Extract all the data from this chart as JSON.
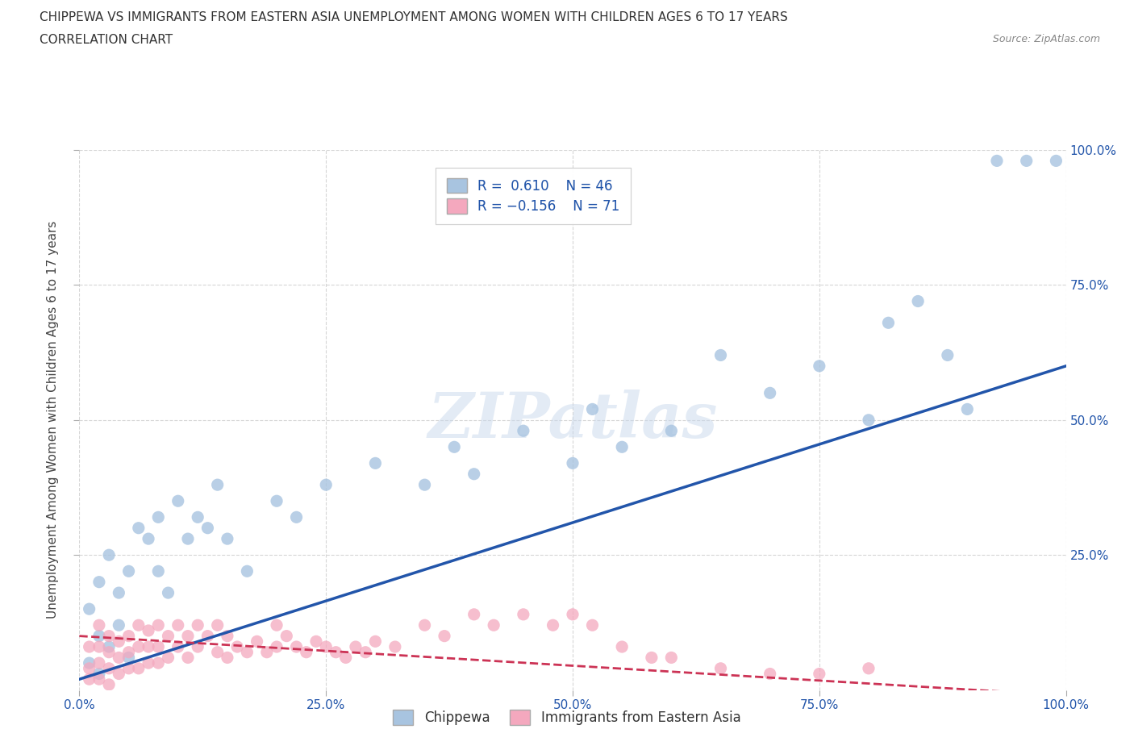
{
  "title_line1": "CHIPPEWA VS IMMIGRANTS FROM EASTERN ASIA UNEMPLOYMENT AMONG WOMEN WITH CHILDREN AGES 6 TO 17 YEARS",
  "title_line2": "CORRELATION CHART",
  "source_text": "Source: ZipAtlas.com",
  "ylabel": "Unemployment Among Women with Children Ages 6 to 17 years",
  "watermark": "ZIPatlas",
  "chippewa_color": "#a8c4e0",
  "eastern_asia_color": "#f4a8be",
  "chippewa_line_color": "#2255aa",
  "eastern_asia_line_color": "#cc3355",
  "background_color": "#ffffff",
  "grid_color": "#cccccc",
  "xlim": [
    0,
    1.0
  ],
  "ylim": [
    0,
    1.0
  ],
  "xtick_labels": [
    "0.0%",
    "25.0%",
    "50.0%",
    "75.0%",
    "100.0%"
  ],
  "xtick_vals": [
    0.0,
    0.25,
    0.5,
    0.75,
    1.0
  ],
  "ytick_vals": [
    0.25,
    0.5,
    0.75,
    1.0
  ],
  "right_ytick_labels": [
    "25.0%",
    "50.0%",
    "75.0%",
    "100.0%"
  ],
  "right_ytick_vals": [
    0.25,
    0.5,
    0.75,
    1.0
  ],
  "chippewa_x": [
    0.01,
    0.01,
    0.02,
    0.02,
    0.02,
    0.03,
    0.03,
    0.04,
    0.04,
    0.05,
    0.05,
    0.06,
    0.07,
    0.08,
    0.08,
    0.09,
    0.1,
    0.11,
    0.12,
    0.13,
    0.14,
    0.15,
    0.17,
    0.2,
    0.22,
    0.25,
    0.3,
    0.35,
    0.38,
    0.4,
    0.45,
    0.5,
    0.52,
    0.55,
    0.6,
    0.65,
    0.7,
    0.75,
    0.8,
    0.82,
    0.85,
    0.88,
    0.9,
    0.93,
    0.96,
    0.99
  ],
  "chippewa_y": [
    0.15,
    0.05,
    0.2,
    0.1,
    0.03,
    0.25,
    0.08,
    0.18,
    0.12,
    0.22,
    0.06,
    0.3,
    0.28,
    0.22,
    0.32,
    0.18,
    0.35,
    0.28,
    0.32,
    0.3,
    0.38,
    0.28,
    0.22,
    0.35,
    0.32,
    0.38,
    0.42,
    0.38,
    0.45,
    0.4,
    0.48,
    0.42,
    0.52,
    0.45,
    0.48,
    0.62,
    0.55,
    0.6,
    0.5,
    0.68,
    0.72,
    0.62,
    0.52,
    0.98,
    0.98,
    0.98
  ],
  "eastern_asia_x": [
    0.01,
    0.01,
    0.01,
    0.02,
    0.02,
    0.02,
    0.02,
    0.03,
    0.03,
    0.03,
    0.03,
    0.04,
    0.04,
    0.04,
    0.05,
    0.05,
    0.05,
    0.06,
    0.06,
    0.06,
    0.07,
    0.07,
    0.07,
    0.08,
    0.08,
    0.08,
    0.09,
    0.09,
    0.1,
    0.1,
    0.11,
    0.11,
    0.12,
    0.12,
    0.13,
    0.14,
    0.14,
    0.15,
    0.15,
    0.16,
    0.17,
    0.18,
    0.19,
    0.2,
    0.2,
    0.21,
    0.22,
    0.23,
    0.24,
    0.25,
    0.26,
    0.27,
    0.28,
    0.29,
    0.3,
    0.32,
    0.35,
    0.37,
    0.4,
    0.42,
    0.45,
    0.48,
    0.5,
    0.52,
    0.55,
    0.58,
    0.6,
    0.65,
    0.7,
    0.75,
    0.8
  ],
  "eastern_asia_y": [
    0.08,
    0.04,
    0.02,
    0.12,
    0.08,
    0.05,
    0.02,
    0.1,
    0.07,
    0.04,
    0.01,
    0.09,
    0.06,
    0.03,
    0.1,
    0.07,
    0.04,
    0.12,
    0.08,
    0.04,
    0.11,
    0.08,
    0.05,
    0.12,
    0.08,
    0.05,
    0.1,
    0.06,
    0.12,
    0.08,
    0.1,
    0.06,
    0.12,
    0.08,
    0.1,
    0.12,
    0.07,
    0.1,
    0.06,
    0.08,
    0.07,
    0.09,
    0.07,
    0.12,
    0.08,
    0.1,
    0.08,
    0.07,
    0.09,
    0.08,
    0.07,
    0.06,
    0.08,
    0.07,
    0.09,
    0.08,
    0.12,
    0.1,
    0.14,
    0.12,
    0.14,
    0.12,
    0.14,
    0.12,
    0.08,
    0.06,
    0.06,
    0.04,
    0.03,
    0.03,
    0.04
  ]
}
